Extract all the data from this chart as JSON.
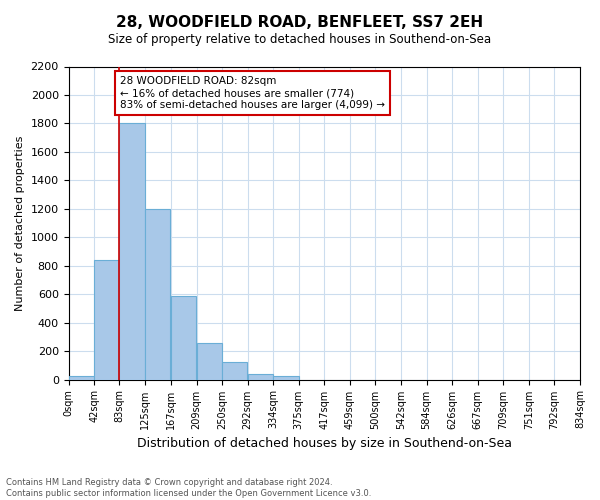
{
  "title": "28, WOODFIELD ROAD, BENFLEET, SS7 2EH",
  "subtitle": "Size of property relative to detached houses in Southend-on-Sea",
  "xlabel": "Distribution of detached houses by size in Southend-on-Sea",
  "ylabel": "Number of detached properties",
  "bar_left_edges": [
    0,
    42,
    83,
    125,
    167,
    209,
    250,
    292,
    334,
    375,
    417,
    459,
    500,
    542,
    584,
    626,
    667,
    709,
    751,
    792
  ],
  "bar_heights": [
    25,
    840,
    1800,
    1200,
    590,
    255,
    125,
    40,
    25,
    0,
    0,
    0,
    0,
    0,
    0,
    0,
    0,
    0,
    0,
    0
  ],
  "bin_width": 41,
  "bar_color": "#a8c8e8",
  "bar_edge_color": "#6aaed6",
  "x_tick_positions": [
    0,
    42,
    83,
    125,
    167,
    209,
    250,
    292,
    334,
    375,
    417,
    459,
    500,
    542,
    584,
    626,
    667,
    709,
    751,
    792,
    834
  ],
  "x_tick_labels": [
    "0sqm",
    "42sqm",
    "83sqm",
    "125sqm",
    "167sqm",
    "209sqm",
    "250sqm",
    "292sqm",
    "334sqm",
    "375sqm",
    "417sqm",
    "459sqm",
    "500sqm",
    "542sqm",
    "584sqm",
    "626sqm",
    "667sqm",
    "709sqm",
    "751sqm",
    "792sqm",
    "834sqm"
  ],
  "ylim": [
    0,
    2200
  ],
  "xlim": [
    0,
    834
  ],
  "yticks": [
    0,
    200,
    400,
    600,
    800,
    1000,
    1200,
    1400,
    1600,
    1800,
    2000,
    2200
  ],
  "property_line_x": 83,
  "property_line_color": "#cc0000",
  "annotation_text": "28 WOODFIELD ROAD: 82sqm\n← 16% of detached houses are smaller (774)\n83% of semi-detached houses are larger (4,099) →",
  "annotation_box_color": "#ffffff",
  "annotation_box_edge": "#cc0000",
  "footer_line1": "Contains HM Land Registry data © Crown copyright and database right 2024.",
  "footer_line2": "Contains public sector information licensed under the Open Government Licence v3.0.",
  "background_color": "#ffffff",
  "grid_color": "#ccddee"
}
